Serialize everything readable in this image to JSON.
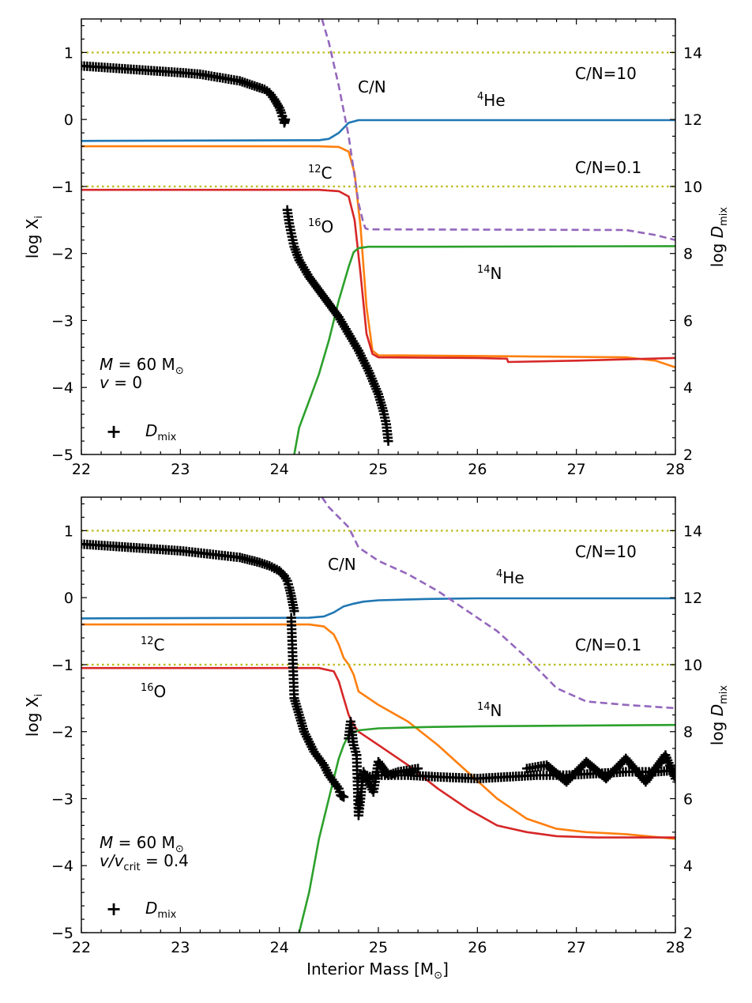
{
  "figure": {
    "xlabel_text": "Interior Mass [M",
    "xlabel_unit_symbol": "⊙",
    "xlabel_close": "]"
  },
  "chart_data": [
    {
      "type": "line",
      "panel": "top",
      "xlim": [
        22,
        28
      ],
      "ylim": [
        -5,
        1.5
      ],
      "y2lim": [
        2,
        15
      ],
      "xticks": [
        "22",
        "23",
        "24",
        "25",
        "26",
        "27",
        "28"
      ],
      "yticks": [
        "−5",
        "−4",
        "−3",
        "−2",
        "−1",
        "0",
        "1"
      ],
      "y2ticks": [
        "2",
        "4",
        "6",
        "8",
        "10",
        "12",
        "14"
      ],
      "ylabel": {
        "main": "log X",
        "sub": "i"
      },
      "y2label": {
        "main": "log ",
        "italic": "D",
        "sub": "mix"
      },
      "colors": {
        "He4": "#1f77b4",
        "C12": "#ff7f0e",
        "O16": "#d62728",
        "N14": "#2ca02c",
        "CN": "#9467bd",
        "ref": "#bcbd22",
        "dmix": "#000000"
      },
      "annotations": [
        {
          "key": "cn",
          "text": "C/N"
        },
        {
          "key": "cn10",
          "text": "C/N=10"
        },
        {
          "key": "cn01",
          "text": "C/N=0.1"
        },
        {
          "key": "he4",
          "sup": "4",
          "text": "He"
        },
        {
          "key": "c12",
          "sup": "12",
          "text": "C"
        },
        {
          "key": "o16",
          "sup": "16",
          "text": "O"
        },
        {
          "key": "n14",
          "sup": "14",
          "text": "N"
        }
      ],
      "model": {
        "line1_lhs": "M",
        "line1_rhs": " = 60 M",
        "sun": "⊙",
        "line2_lhs": "v",
        "line2_rhs": " = 0",
        "line2_sub": ""
      },
      "legend": {
        "marker": "+",
        "label": "D",
        "label_sub": "mix",
        "placement": "lower-left"
      },
      "series": [
        {
          "name": "4He",
          "key": "He4",
          "x": [
            22,
            24.4,
            24.5,
            24.6,
            24.7,
            24.8,
            25,
            28
          ],
          "y": [
            -0.32,
            -0.31,
            -0.29,
            -0.2,
            -0.05,
            -0.01,
            -0.01,
            -0.01
          ]
        },
        {
          "name": "12C",
          "key": "C12",
          "x": [
            22,
            24.4,
            24.6,
            24.7,
            24.76,
            24.82,
            24.88,
            24.94,
            25,
            26,
            27.5,
            27.8,
            28
          ],
          "y": [
            -0.4,
            -0.4,
            -0.41,
            -0.48,
            -0.8,
            -1.6,
            -2.8,
            -3.45,
            -3.52,
            -3.53,
            -3.55,
            -3.6,
            -3.7
          ]
        },
        {
          "name": "16O",
          "key": "O16",
          "x": [
            22,
            24.4,
            24.6,
            24.7,
            24.76,
            24.82,
            24.88,
            24.94,
            25,
            26,
            26.3,
            26.31,
            27,
            28
          ],
          "y": [
            -1.05,
            -1.05,
            -1.07,
            -1.15,
            -1.5,
            -2.3,
            -3.2,
            -3.5,
            -3.55,
            -3.56,
            -3.57,
            -3.62,
            -3.6,
            -3.56
          ]
        },
        {
          "name": "14N",
          "key": "N14",
          "x": [
            24.15,
            24.2,
            24.3,
            24.4,
            24.5,
            24.6,
            24.7,
            24.75,
            24.8,
            24.9,
            25.5,
            28
          ],
          "y": [
            -5,
            -4.6,
            -4.2,
            -3.8,
            -3.3,
            -2.7,
            -2.2,
            -1.98,
            -1.92,
            -1.9,
            -1.9,
            -1.89
          ]
        },
        {
          "name": "C/N",
          "key": "CN",
          "dashed": true,
          "axis": "y2",
          "x": [
            24.43,
            24.5,
            24.6,
            24.7,
            24.75,
            24.8,
            24.85,
            24.87,
            24.9,
            25,
            27.5,
            27.8,
            28
          ],
          "y": [
            15,
            14.3,
            13,
            11.5,
            10.5,
            9.5,
            8.9,
            8.75,
            8.72,
            8.72,
            8.7,
            8.55,
            8.4
          ]
        },
        {
          "name": "C/N=10",
          "key": "ref",
          "dotted": true,
          "axis": "y2",
          "x": [
            22,
            28
          ],
          "y": [
            14,
            14
          ]
        },
        {
          "name": "C/N=0.1",
          "key": "ref",
          "dotted": true,
          "axis": "y2",
          "x": [
            22,
            28
          ],
          "y": [
            10,
            10
          ]
        },
        {
          "name": "Dmix",
          "key": "dmix",
          "markers": true,
          "axis": "y2",
          "segments": [
            {
              "x": [
                22.0,
                22.5,
                23.0,
                23.2,
                23.4,
                23.6,
                23.7,
                23.8,
                23.85,
                23.9,
                23.95,
                24.0,
                24.02,
                24.05,
                24.06
              ],
              "y": [
                13.6,
                13.5,
                13.4,
                13.35,
                13.25,
                13.15,
                13.05,
                12.95,
                12.9,
                12.8,
                12.6,
                12.35,
                12.2,
                11.9,
                12.0
              ]
            },
            {
              "x": [
                24.08,
                24.1,
                24.12,
                24.15,
                24.2,
                24.3,
                24.4,
                24.5,
                24.6,
                24.7,
                24.8,
                24.9,
                25.0,
                25.05,
                25.08,
                25.1
              ],
              "y": [
                9.3,
                8.9,
                8.6,
                8.2,
                7.8,
                7.3,
                6.9,
                6.5,
                6.1,
                5.6,
                5.1,
                4.5,
                3.8,
                3.3,
                2.9,
                2.4
              ]
            }
          ]
        }
      ]
    },
    {
      "type": "line",
      "panel": "bottom",
      "xlim": [
        22,
        28
      ],
      "ylim": [
        -5,
        1.5
      ],
      "y2lim": [
        2,
        15
      ],
      "xticks": [
        "22",
        "23",
        "24",
        "25",
        "26",
        "27",
        "28"
      ],
      "yticks": [
        "−5",
        "−4",
        "−3",
        "−2",
        "−1",
        "0",
        "1"
      ],
      "y2ticks": [
        "2",
        "4",
        "6",
        "8",
        "10",
        "12",
        "14"
      ],
      "ylabel": {
        "main": "log X",
        "sub": "i"
      },
      "y2label": {
        "main": "log ",
        "italic": "D",
        "sub": "mix"
      },
      "annotations": [
        {
          "key": "cn",
          "text": "C/N"
        },
        {
          "key": "cn10",
          "text": "C/N=10"
        },
        {
          "key": "cn01",
          "text": "C/N=0.1"
        },
        {
          "key": "he4",
          "sup": "4",
          "text": "He"
        },
        {
          "key": "c12",
          "sup": "12",
          "text": "C"
        },
        {
          "key": "o16",
          "sup": "16",
          "text": "O"
        },
        {
          "key": "n14",
          "sup": "14",
          "text": "N"
        }
      ],
      "model": {
        "line1_lhs": "M",
        "line1_rhs": " = 60 M",
        "sun": "⊙",
        "line2_lhs": "v",
        "line2_rhs": " = 0.4",
        "line2_sub": "crit",
        "line2_mid": "/v"
      },
      "legend": {
        "marker": "+",
        "label": "D",
        "label_sub": "mix",
        "placement": "lower-left"
      },
      "series": [
        {
          "name": "4He",
          "key": "He4",
          "x": [
            22,
            24.3,
            24.45,
            24.55,
            24.65,
            24.75,
            24.85,
            25,
            25.5,
            26,
            28
          ],
          "y": [
            -0.31,
            -0.3,
            -0.28,
            -0.22,
            -0.13,
            -0.09,
            -0.06,
            -0.04,
            -0.02,
            -0.01,
            -0.01
          ]
        },
        {
          "name": "12C",
          "key": "C12",
          "x": [
            22,
            24.3,
            24.45,
            24.55,
            24.6,
            24.65,
            24.7,
            24.75,
            24.8,
            25,
            25.3,
            25.6,
            25.9,
            26.2,
            26.5,
            26.8,
            27.1,
            27.5,
            28
          ],
          "y": [
            -0.4,
            -0.4,
            -0.43,
            -0.55,
            -0.7,
            -0.9,
            -1.0,
            -1.15,
            -1.4,
            -1.6,
            -1.85,
            -2.2,
            -2.6,
            -3.0,
            -3.3,
            -3.45,
            -3.5,
            -3.53,
            -3.6
          ]
        },
        {
          "name": "16O",
          "key": "O16",
          "x": [
            22,
            24.4,
            24.55,
            24.6,
            24.65,
            24.7,
            24.75,
            24.8,
            25,
            25.3,
            25.6,
            25.9,
            26.2,
            26.5,
            26.8,
            27.2,
            28
          ],
          "y": [
            -1.05,
            -1.05,
            -1.1,
            -1.25,
            -1.5,
            -1.75,
            -1.9,
            -2.0,
            -2.2,
            -2.5,
            -2.85,
            -3.15,
            -3.4,
            -3.5,
            -3.56,
            -3.58,
            -3.58
          ]
        },
        {
          "name": "14N",
          "key": "N14",
          "x": [
            24.2,
            24.3,
            24.4,
            24.5,
            24.55,
            24.6,
            24.65,
            24.7,
            24.8,
            25,
            25.5,
            26,
            28
          ],
          "y": [
            -5,
            -4.4,
            -3.6,
            -3.0,
            -2.7,
            -2.4,
            -2.2,
            -2.05,
            -1.98,
            -1.95,
            -1.93,
            -1.92,
            -1.9
          ]
        },
        {
          "name": "C/N",
          "key": "CN",
          "dashed": true,
          "axis": "y2",
          "x": [
            24.43,
            24.5,
            24.6,
            24.7,
            24.8,
            25,
            25.3,
            25.6,
            25.9,
            26.2,
            26.5,
            26.8,
            27.1,
            27.5,
            28
          ],
          "y": [
            15,
            14.7,
            14.4,
            14.1,
            13.5,
            13.1,
            12.7,
            12.2,
            11.6,
            11.0,
            10.2,
            9.3,
            8.9,
            8.8,
            8.7
          ]
        },
        {
          "name": "C/N=10",
          "key": "ref",
          "dotted": true,
          "axis": "y2",
          "x": [
            22,
            28
          ],
          "y": [
            14,
            14
          ]
        },
        {
          "name": "C/N=0.1",
          "key": "ref",
          "dotted": true,
          "axis": "y2",
          "x": [
            22,
            28
          ],
          "y": [
            10,
            10
          ]
        },
        {
          "name": "Dmix",
          "key": "dmix",
          "markers": true,
          "axis": "y2",
          "segments": [
            {
              "x": [
                22.0,
                22.5,
                23.0,
                23.3,
                23.6,
                23.8,
                23.9,
                24.0,
                24.05,
                24.08,
                24.1,
                24.12,
                24.15
              ],
              "y": [
                13.6,
                13.5,
                13.4,
                13.3,
                13.2,
                13.05,
                12.95,
                12.8,
                12.65,
                12.5,
                12.3,
                12.05,
                11.6
              ]
            },
            {
              "x": [
                24.12,
                24.15,
                24.2,
                24.25,
                24.3,
                24.35,
                24.4,
                24.45,
                24.5,
                24.55,
                24.6,
                24.62,
                24.65
              ],
              "y": [
                11.4,
                9.0,
                8.5,
                8.0,
                7.7,
                7.4,
                7.2,
                7.0,
                6.7,
                6.5,
                6.3,
                6.1,
                6.05
              ]
            },
            {
              "x": [
                24.7,
                24.72,
                24.75,
                24.78,
                24.8,
                24.85,
                24.9,
                24.95,
                25.0,
                25.1,
                25.2,
                25.4
              ],
              "y": [
                7.8,
                8.3,
                7.6,
                7.3,
                5.5,
                6.8,
                6.5,
                6.2,
                7.1,
                6.7,
                6.8,
                6.9
              ]
            },
            {
              "x": [
                24.8,
                25.0,
                25.3,
                25.6,
                26.0,
                26.3,
                26.6,
                26.9,
                27.2,
                27.5,
                27.8,
                28.0
              ],
              "y": [
                6.6,
                6.7,
                6.7,
                6.65,
                6.6,
                6.65,
                6.7,
                6.7,
                6.75,
                6.8,
                6.8,
                6.85
              ]
            },
            {
              "x": [
                26.5,
                26.7,
                26.9,
                27.1,
                27.3,
                27.5,
                27.7,
                27.9,
                28.0
              ],
              "y": [
                6.9,
                7.0,
                6.5,
                7.1,
                6.6,
                7.2,
                6.5,
                7.3,
                6.6
              ]
            }
          ]
        }
      ]
    }
  ]
}
